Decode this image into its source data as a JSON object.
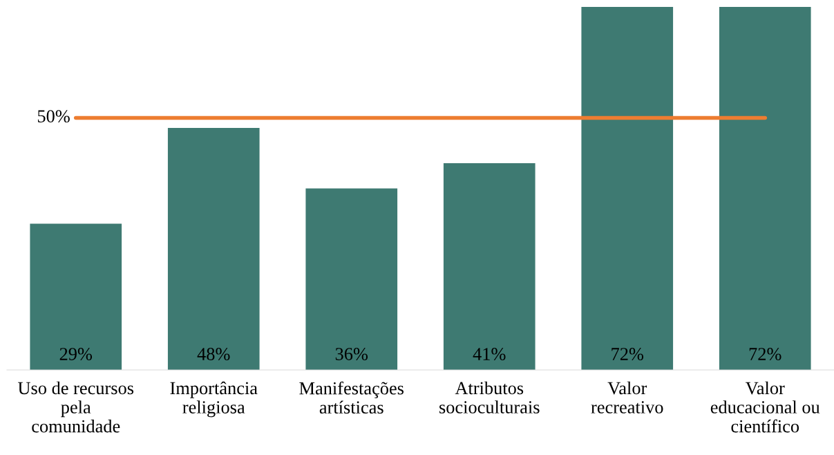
{
  "chart_data": {
    "type": "bar",
    "categories": [
      "Uso de recursos\npela\ncomunidade",
      "Importância\nreligiosa",
      "Manifestações\nartísticas",
      "Atributos\nsocioculturais",
      "Valor\nrecreativo",
      "Valor\neducacional ou\ncientífico"
    ],
    "values": [
      29,
      48,
      36,
      41,
      72,
      72
    ],
    "value_labels": [
      "29%",
      "48%",
      "36%",
      "41%",
      "72%",
      "72%"
    ],
    "color": "#3e7a72",
    "ylim": [
      0,
      72
    ],
    "ref_lines": [
      {
        "axis": "y",
        "value": 50,
        "label": "50%",
        "color": "#ed7d31"
      }
    ],
    "tick_labels": "x",
    "grid": false,
    "legend": false
  }
}
